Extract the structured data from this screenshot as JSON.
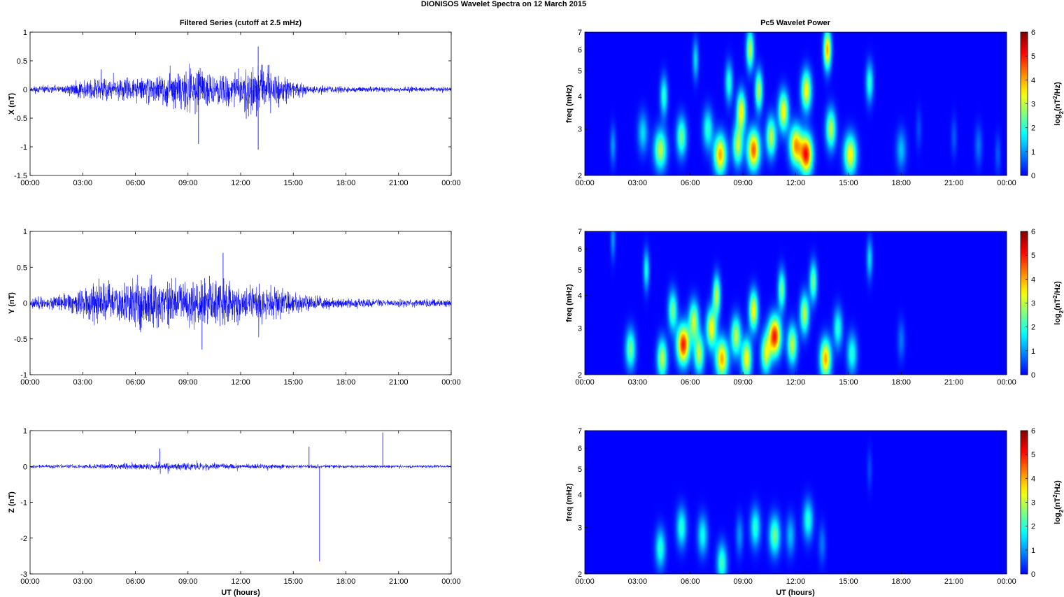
{
  "title": "DIONISOS Wavelet Spectra on 12 March     2015",
  "left_title": "Filtered Series (cutoff at 2.5 mHz)",
  "right_title": "Pc5 Wavelet Power",
  "xlabel": "UT (hours)",
  "colorbar_label": "log2(nT2/Hz)",
  "colors": {
    "trace": "#0000ff",
    "axis": "#000000"
  },
  "chart_data": [
    {
      "type": "line",
      "panel": "X",
      "ylabel": "X (nT)",
      "xlim": [
        0,
        24
      ],
      "ylim": [
        -1.5,
        1
      ],
      "x_ticks": [
        "00:00",
        "03:00",
        "06:00",
        "09:00",
        "12:00",
        "15:00",
        "18:00",
        "21:00",
        "00:00"
      ],
      "y_ticks": [
        "1",
        "0.5",
        "0",
        "-0.5",
        "-1",
        "-1.5"
      ],
      "series": [
        {
          "envelope_hours": [
            0,
            2,
            3,
            4,
            5,
            6,
            7,
            8,
            9,
            10,
            11,
            12,
            13,
            14,
            15,
            16,
            18,
            20,
            22,
            24
          ],
          "envelope_amplitude": [
            0.08,
            0.1,
            0.22,
            0.3,
            0.25,
            0.28,
            0.3,
            0.35,
            0.5,
            0.4,
            0.35,
            0.45,
            0.65,
            0.4,
            0.2,
            0.1,
            0.07,
            0.06,
            0.06,
            0.06
          ]
        }
      ],
      "notable_values": [
        {
          "x": 9.6,
          "y": -0.95
        },
        {
          "x": 13.0,
          "y": -1.05
        },
        {
          "x": 13.0,
          "y": 0.75
        }
      ]
    },
    {
      "type": "line",
      "panel": "Y",
      "ylabel": "Y (nT)",
      "xlim": [
        0,
        24
      ],
      "ylim": [
        -1,
        1
      ],
      "x_ticks": [
        "00:00",
        "03:00",
        "06:00",
        "09:00",
        "12:00",
        "15:00",
        "18:00",
        "21:00",
        "00:00"
      ],
      "y_ticks": [
        "1",
        "0.5",
        "0",
        "-0.5",
        "-1"
      ],
      "series": [
        {
          "envelope_hours": [
            0,
            2,
            3,
            4,
            5,
            6,
            7,
            8,
            9,
            10,
            11,
            12,
            13,
            14,
            15,
            16,
            18,
            20,
            22,
            24
          ],
          "envelope_amplitude": [
            0.1,
            0.15,
            0.3,
            0.4,
            0.35,
            0.5,
            0.5,
            0.4,
            0.45,
            0.5,
            0.5,
            0.35,
            0.35,
            0.3,
            0.2,
            0.15,
            0.08,
            0.07,
            0.07,
            0.07
          ]
        }
      ],
      "notable_values": [
        {
          "x": 11.0,
          "y": 0.7
        },
        {
          "x": 9.8,
          "y": -0.65
        }
      ]
    },
    {
      "type": "line",
      "panel": "Z",
      "ylabel": "Z (nT)",
      "xlim": [
        0,
        24
      ],
      "ylim": [
        -3,
        1
      ],
      "x_ticks": [
        "00:00",
        "03:00",
        "06:00",
        "09:00",
        "12:00",
        "15:00",
        "18:00",
        "21:00",
        "00:00"
      ],
      "y_ticks": [
        "1",
        "0",
        "-1",
        "-2",
        "-3"
      ],
      "series": [
        {
          "envelope_hours": [
            0,
            3,
            6,
            9,
            12,
            15,
            18,
            21,
            24
          ],
          "envelope_amplitude": [
            0.06,
            0.08,
            0.12,
            0.15,
            0.1,
            0.08,
            0.06,
            0.05,
            0.05
          ]
        }
      ],
      "notable_values": [
        {
          "x": 16.5,
          "y": -2.65
        },
        {
          "x": 20.1,
          "y": 0.95
        },
        {
          "x": 15.9,
          "y": 0.55
        },
        {
          "x": 7.4,
          "y": 0.5
        }
      ]
    },
    {
      "type": "heatmap",
      "panel": "X",
      "ylabel": "freq (mHz)",
      "xlim": [
        0,
        24
      ],
      "ylim": [
        2,
        7
      ],
      "yscale": "log",
      "x_ticks": [
        "00:00",
        "03:00",
        "06:00",
        "09:00",
        "12:00",
        "15:00",
        "18:00",
        "21:00",
        "00:00"
      ],
      "y_ticks": [
        "7",
        "6",
        "5",
        "4",
        "3",
        "2"
      ],
      "colorbar": {
        "min": 0,
        "max": 6,
        "ticks": [
          "6",
          "5",
          "4",
          "3",
          "2",
          "1",
          "0"
        ]
      },
      "blobs": [
        {
          "t": 1.6,
          "f": 2.6,
          "p": 1.0,
          "w": 0.12
        },
        {
          "t": 3.3,
          "f": 2.9,
          "p": 1.5,
          "w": 0.2
        },
        {
          "t": 4.3,
          "f": 2.5,
          "p": 3.0,
          "w": 0.25
        },
        {
          "t": 4.5,
          "f": 4.0,
          "p": 2.0,
          "w": 0.15
        },
        {
          "t": 5.5,
          "f": 2.8,
          "p": 2.5,
          "w": 0.2
        },
        {
          "t": 6.3,
          "f": 5.5,
          "p": 1.5,
          "w": 0.12
        },
        {
          "t": 7.0,
          "f": 3.0,
          "p": 2.0,
          "w": 0.2
        },
        {
          "t": 7.7,
          "f": 2.4,
          "p": 4.0,
          "w": 0.25
        },
        {
          "t": 8.2,
          "f": 4.5,
          "p": 2.0,
          "w": 0.15
        },
        {
          "t": 8.7,
          "f": 2.6,
          "p": 3.0,
          "w": 0.2
        },
        {
          "t": 8.9,
          "f": 3.5,
          "p": 3.5,
          "w": 0.18
        },
        {
          "t": 9.4,
          "f": 6.0,
          "p": 3.0,
          "w": 0.15
        },
        {
          "t": 9.6,
          "f": 2.5,
          "p": 4.5,
          "w": 0.25
        },
        {
          "t": 9.9,
          "f": 4.2,
          "p": 3.0,
          "w": 0.15
        },
        {
          "t": 10.6,
          "f": 2.8,
          "p": 3.0,
          "w": 0.2
        },
        {
          "t": 11.3,
          "f": 3.5,
          "p": 3.5,
          "w": 0.2
        },
        {
          "t": 12.0,
          "f": 2.6,
          "p": 4.0,
          "w": 0.25
        },
        {
          "t": 12.6,
          "f": 2.4,
          "p": 5.0,
          "w": 0.25
        },
        {
          "t": 12.6,
          "f": 4.2,
          "p": 3.5,
          "w": 0.2
        },
        {
          "t": 13.8,
          "f": 6.0,
          "p": 4.0,
          "w": 0.15
        },
        {
          "t": 14.0,
          "f": 3.0,
          "p": 3.0,
          "w": 0.2
        },
        {
          "t": 15.1,
          "f": 2.4,
          "p": 3.5,
          "w": 0.25
        },
        {
          "t": 16.2,
          "f": 4.5,
          "p": 2.0,
          "w": 0.15
        },
        {
          "t": 18.0,
          "f": 2.5,
          "p": 1.3,
          "w": 0.2
        },
        {
          "t": 19.0,
          "f": 3.0,
          "p": 0.5,
          "w": 0.12
        },
        {
          "t": 21.0,
          "f": 2.8,
          "p": 0.6,
          "w": 0.12
        },
        {
          "t": 22.4,
          "f": 2.6,
          "p": 0.8,
          "w": 0.15
        },
        {
          "t": 23.5,
          "f": 2.4,
          "p": 0.6,
          "w": 0.12
        }
      ]
    },
    {
      "type": "heatmap",
      "panel": "Y",
      "ylabel": "freq (mHz)",
      "xlim": [
        0,
        24
      ],
      "ylim": [
        2,
        7
      ],
      "yscale": "log",
      "x_ticks": [
        "00:00",
        "03:00",
        "06:00",
        "09:00",
        "12:00",
        "15:00",
        "18:00",
        "21:00",
        "00:00"
      ],
      "y_ticks": [
        "7",
        "6",
        "5",
        "4",
        "3",
        "2"
      ],
      "colorbar": {
        "min": 0,
        "max": 6,
        "ticks": [
          "6",
          "5",
          "4",
          "3",
          "2",
          "1",
          "0"
        ]
      },
      "blobs": [
        {
          "t": 1.6,
          "f": 6.5,
          "p": 1.0,
          "w": 0.1
        },
        {
          "t": 2.6,
          "f": 2.5,
          "p": 2.5,
          "w": 0.2
        },
        {
          "t": 3.5,
          "f": 5.0,
          "p": 1.8,
          "w": 0.12
        },
        {
          "t": 4.4,
          "f": 2.3,
          "p": 3.0,
          "w": 0.2
        },
        {
          "t": 5.0,
          "f": 3.5,
          "p": 2.5,
          "w": 0.18
        },
        {
          "t": 5.6,
          "f": 2.6,
          "p": 5.0,
          "w": 0.25
        },
        {
          "t": 6.2,
          "f": 3.2,
          "p": 3.0,
          "w": 0.2
        },
        {
          "t": 6.5,
          "f": 2.4,
          "p": 3.0,
          "w": 0.2
        },
        {
          "t": 7.2,
          "f": 3.0,
          "p": 3.5,
          "w": 0.2
        },
        {
          "t": 7.5,
          "f": 4.0,
          "p": 3.0,
          "w": 0.15
        },
        {
          "t": 7.8,
          "f": 2.3,
          "p": 4.0,
          "w": 0.25
        },
        {
          "t": 8.6,
          "f": 2.8,
          "p": 3.0,
          "w": 0.2
        },
        {
          "t": 9.2,
          "f": 2.3,
          "p": 3.5,
          "w": 0.2
        },
        {
          "t": 9.6,
          "f": 3.5,
          "p": 3.5,
          "w": 0.18
        },
        {
          "t": 10.3,
          "f": 2.4,
          "p": 3.0,
          "w": 0.2
        },
        {
          "t": 10.8,
          "f": 2.8,
          "p": 5.0,
          "w": 0.25
        },
        {
          "t": 11.2,
          "f": 4.2,
          "p": 2.5,
          "w": 0.15
        },
        {
          "t": 11.8,
          "f": 2.6,
          "p": 3.0,
          "w": 0.2
        },
        {
          "t": 12.5,
          "f": 3.4,
          "p": 3.0,
          "w": 0.18
        },
        {
          "t": 13.0,
          "f": 4.5,
          "p": 2.5,
          "w": 0.15
        },
        {
          "t": 13.7,
          "f": 2.3,
          "p": 4.0,
          "w": 0.22
        },
        {
          "t": 14.4,
          "f": 3.0,
          "p": 2.0,
          "w": 0.18
        },
        {
          "t": 15.2,
          "f": 2.4,
          "p": 2.0,
          "w": 0.2
        },
        {
          "t": 16.2,
          "f": 5.5,
          "p": 1.5,
          "w": 0.12
        },
        {
          "t": 18.0,
          "f": 2.7,
          "p": 0.8,
          "w": 0.15
        }
      ]
    },
    {
      "type": "heatmap",
      "panel": "Z",
      "ylabel": "freq (mHz)",
      "xlim": [
        0,
        24
      ],
      "ylim": [
        2,
        7
      ],
      "yscale": "log",
      "x_ticks": [
        "00:00",
        "03:00",
        "06:00",
        "09:00",
        "12:00",
        "15:00",
        "18:00",
        "21:00",
        "00:00"
      ],
      "y_ticks": [
        "7",
        "6",
        "5",
        "4",
        "3",
        "2"
      ],
      "colorbar": {
        "min": 0,
        "max": 6,
        "ticks": [
          "6",
          "5",
          "4",
          "3",
          "2",
          "1",
          "0"
        ]
      },
      "blobs": [
        {
          "t": 4.3,
          "f": 2.5,
          "p": 2.0,
          "w": 0.2
        },
        {
          "t": 5.5,
          "f": 3.0,
          "p": 2.0,
          "w": 0.2
        },
        {
          "t": 6.7,
          "f": 2.8,
          "p": 1.8,
          "w": 0.2
        },
        {
          "t": 7.8,
          "f": 2.2,
          "p": 2.2,
          "w": 0.2
        },
        {
          "t": 8.8,
          "f": 2.8,
          "p": 1.0,
          "w": 0.15
        },
        {
          "t": 9.7,
          "f": 3.0,
          "p": 2.0,
          "w": 0.2
        },
        {
          "t": 10.8,
          "f": 2.8,
          "p": 2.5,
          "w": 0.22
        },
        {
          "t": 11.7,
          "f": 2.8,
          "p": 1.3,
          "w": 0.18
        },
        {
          "t": 12.7,
          "f": 3.2,
          "p": 2.0,
          "w": 0.2
        },
        {
          "t": 13.5,
          "f": 2.6,
          "p": 0.8,
          "w": 0.15
        },
        {
          "t": 16.2,
          "f": 5.0,
          "p": 0.5,
          "w": 0.1
        }
      ]
    }
  ]
}
